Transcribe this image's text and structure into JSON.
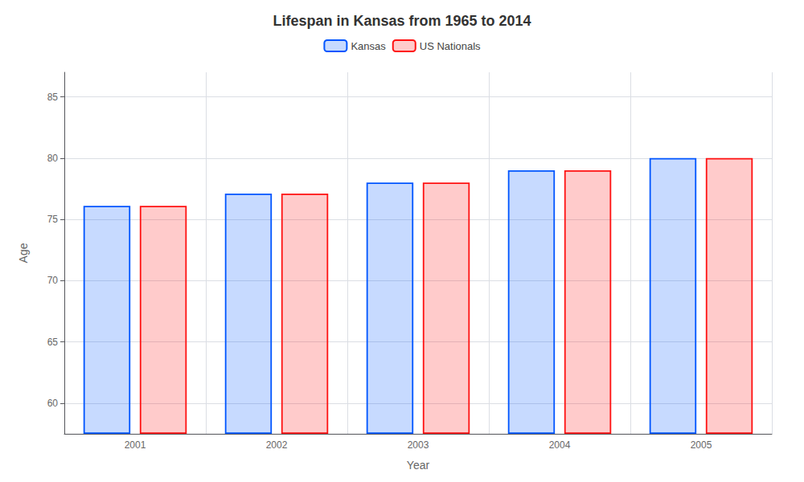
{
  "chart_data": {
    "type": "bar",
    "title": "Lifespan in Kansas from 1965 to 2014",
    "x_label": "Year",
    "y_label": "Age",
    "categories": [
      "2001",
      "2002",
      "2003",
      "2004",
      "2005"
    ],
    "series": [
      {
        "name": "Kansas",
        "color": "#0055ff",
        "values": [
          76.1,
          77.1,
          78.0,
          79.0,
          80.0
        ]
      },
      {
        "name": "US Nationals",
        "color": "#ff1111",
        "values": [
          76.1,
          77.1,
          78.0,
          79.0,
          80.0
        ]
      }
    ],
    "ylim": [
      57.5,
      87
    ],
    "yticks": [
      60,
      65,
      70,
      75,
      80,
      85
    ],
    "grid": true,
    "legend": "top"
  }
}
